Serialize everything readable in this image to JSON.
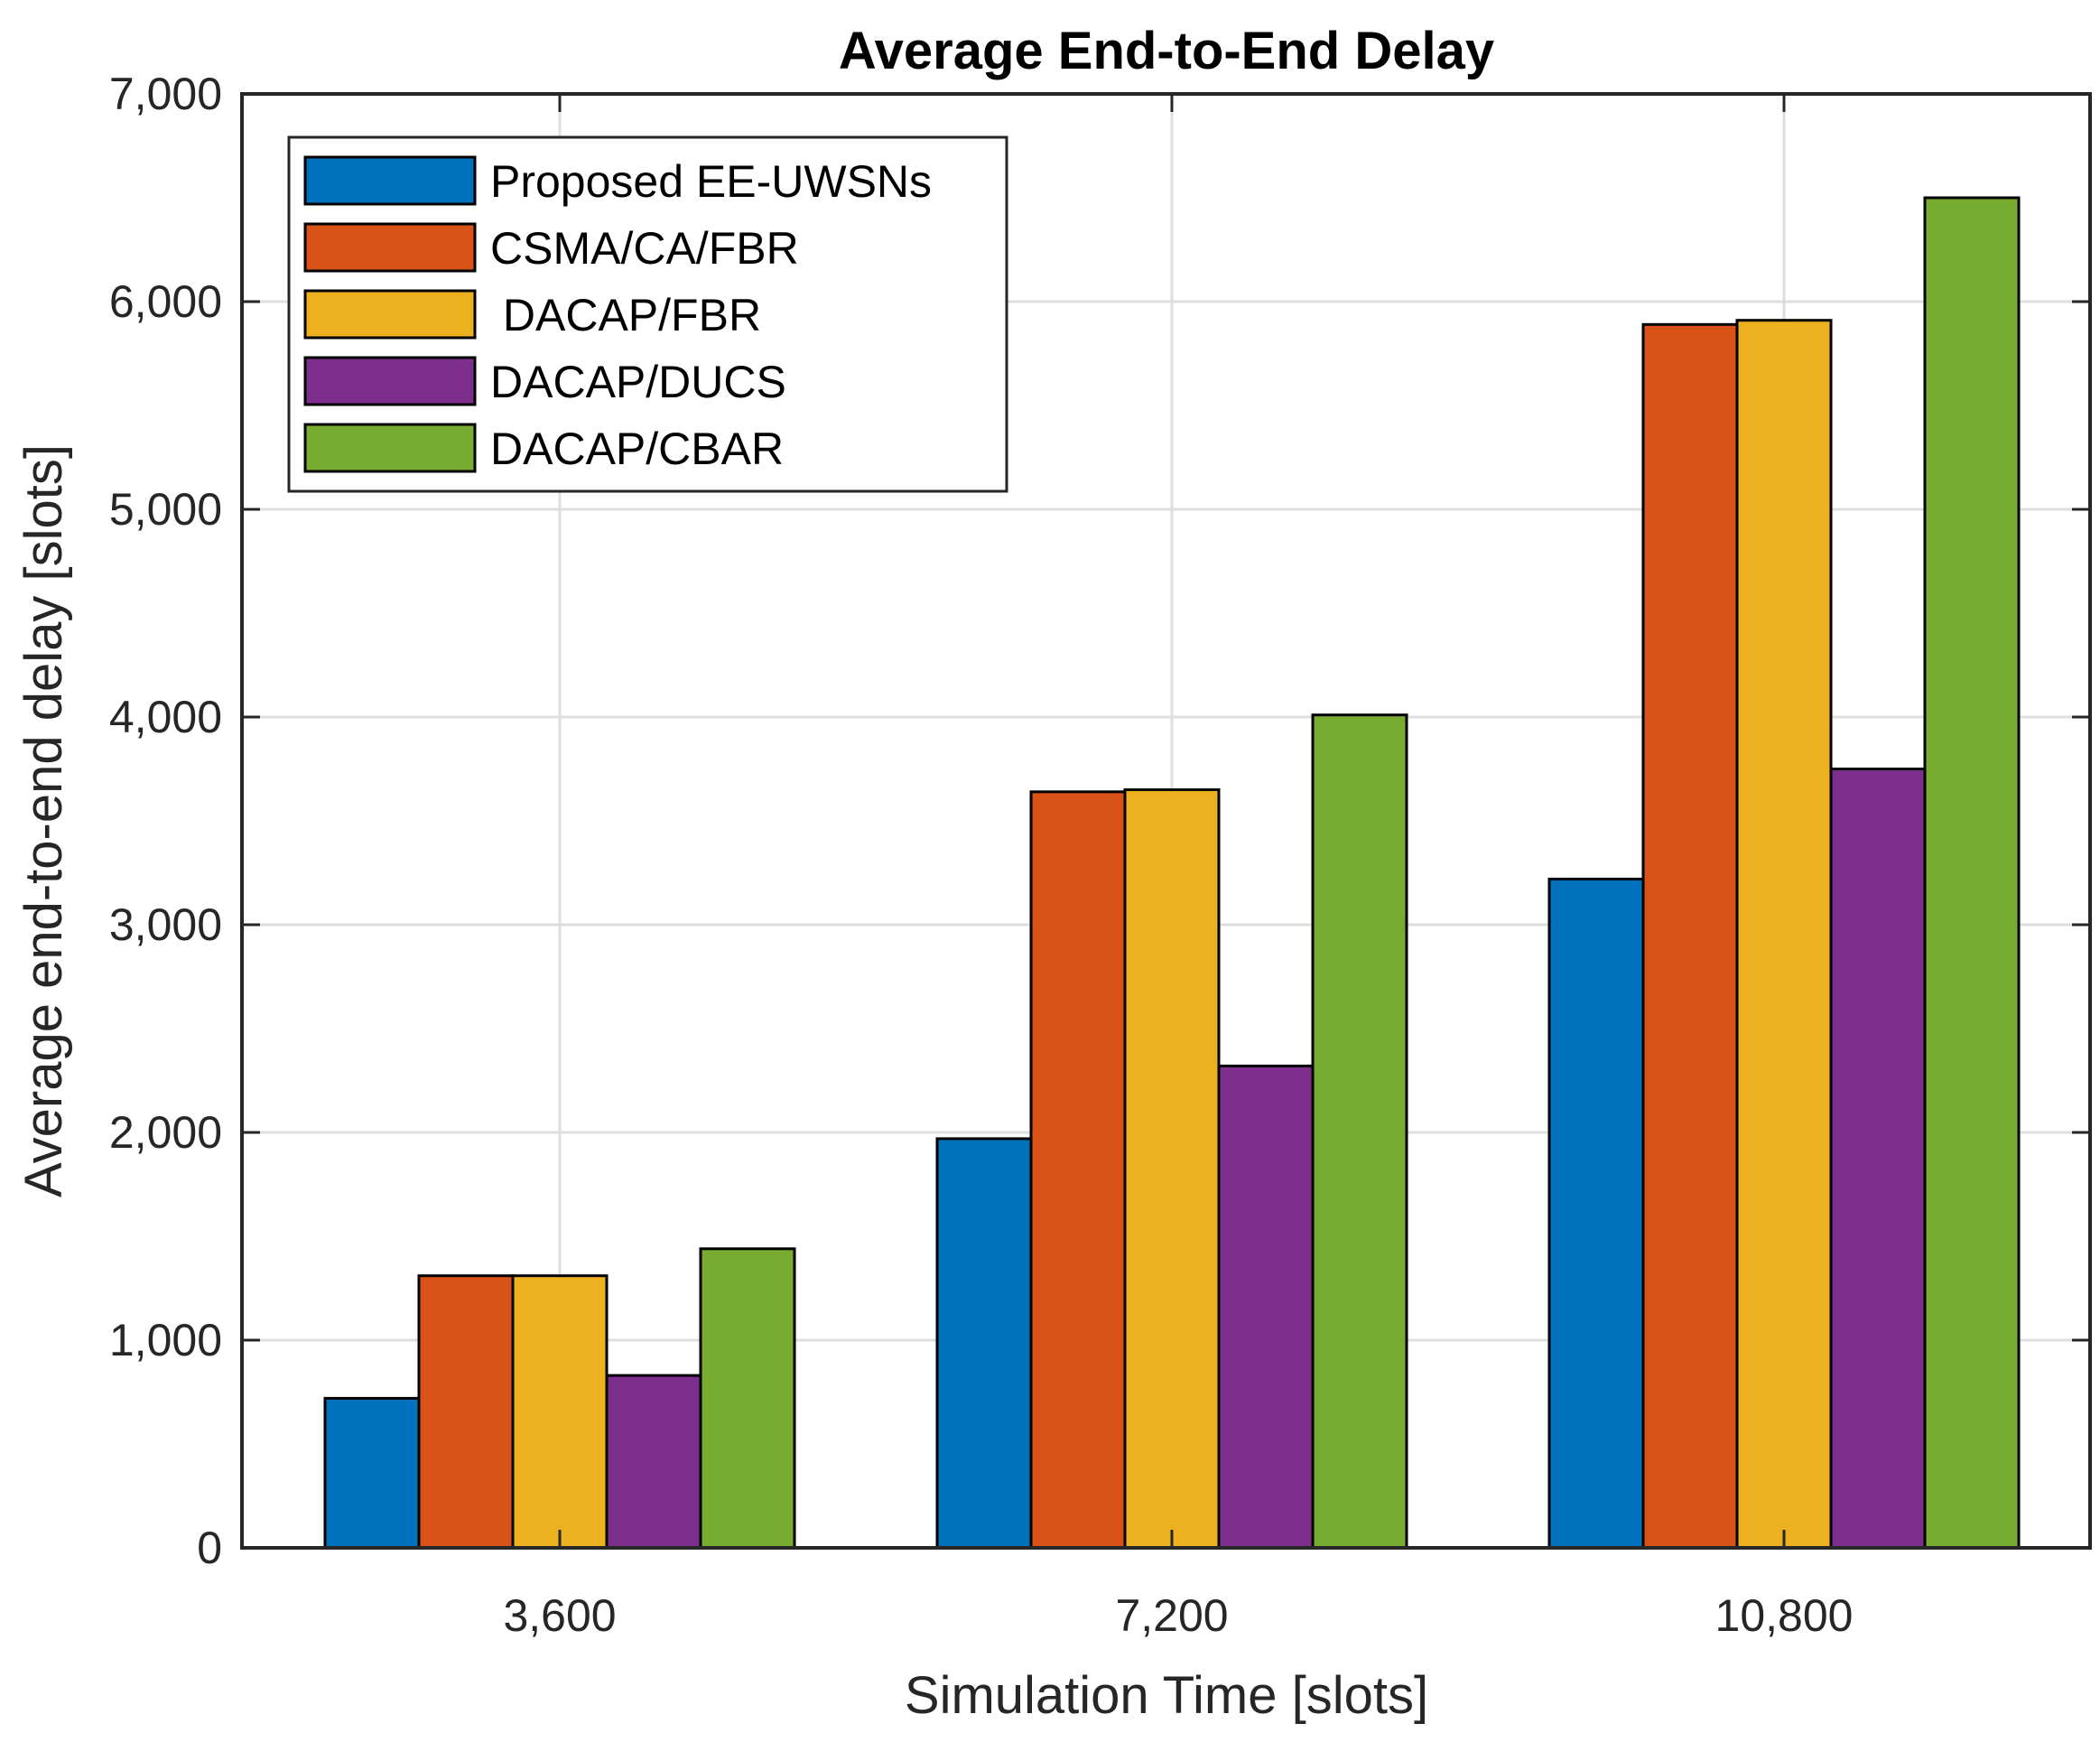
{
  "chart_data": {
    "type": "bar",
    "title": "Average End-to-End Delay",
    "xlabel": "Simulation Time [slots]",
    "ylabel": "Average end-to-end delay [slots]",
    "categories": [
      "3,600",
      "7,200",
      "10,800"
    ],
    "ylim": [
      0,
      7000
    ],
    "yticks": [
      0,
      1000,
      2000,
      3000,
      4000,
      5000,
      6000,
      7000
    ],
    "ytick_labels": [
      "0",
      "1,000",
      "2,000",
      "3,000",
      "4,000",
      "5,000",
      "6,000",
      "7,000"
    ],
    "grid": true,
    "legend_position": "top-left",
    "series": [
      {
        "name": "Proposed EE-UWSNs",
        "color": "#0072BD",
        "values": [
          720,
          1970,
          3220
        ]
      },
      {
        "name": "CSMA/CA/FBR",
        "color": "#D95319",
        "values": [
          1310,
          3640,
          5890
        ]
      },
      {
        "name": " DACAP/FBR",
        "color": "#EDB120",
        "values": [
          1310,
          3650,
          5910
        ]
      },
      {
        "name": "DACAP/DUCS",
        "color": "#7E2F8E",
        "values": [
          830,
          2320,
          3750
        ]
      },
      {
        "name": "DACAP/CBAR",
        "color": "#77AC30",
        "values": [
          1440,
          4010,
          6500
        ]
      }
    ]
  }
}
